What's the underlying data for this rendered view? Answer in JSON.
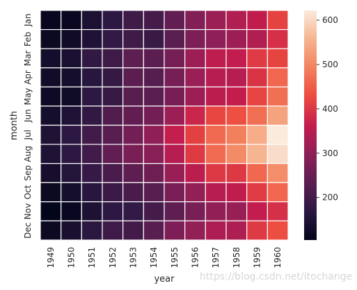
{
  "chart_data": {
    "type": "heatmap",
    "xlabel": "year",
    "ylabel": "month",
    "x": [
      "1949",
      "1950",
      "1951",
      "1952",
      "1953",
      "1954",
      "1955",
      "1956",
      "1957",
      "1958",
      "1959",
      "1960"
    ],
    "y": [
      "Jan",
      "Feb",
      "Mar",
      "Apr",
      "May",
      "Jun",
      "Jul",
      "Aug",
      "Sep",
      "Oct",
      "Nov",
      "Dec"
    ],
    "values": [
      [
        112,
        115,
        145,
        171,
        196,
        204,
        242,
        284,
        315,
        340,
        360,
        417
      ],
      [
        118,
        126,
        150,
        180,
        196,
        188,
        233,
        277,
        301,
        318,
        342,
        391
      ],
      [
        132,
        141,
        178,
        193,
        236,
        235,
        267,
        317,
        356,
        362,
        406,
        419
      ],
      [
        129,
        135,
        163,
        181,
        235,
        227,
        269,
        313,
        348,
        348,
        396,
        461
      ],
      [
        121,
        125,
        172,
        183,
        229,
        234,
        270,
        318,
        355,
        363,
        420,
        472
      ],
      [
        135,
        149,
        178,
        218,
        243,
        264,
        315,
        374,
        422,
        435,
        472,
        535
      ],
      [
        148,
        170,
        199,
        230,
        264,
        302,
        364,
        413,
        465,
        491,
        548,
        622
      ],
      [
        148,
        170,
        199,
        242,
        272,
        293,
        347,
        405,
        467,
        505,
        559,
        606
      ],
      [
        136,
        158,
        184,
        209,
        237,
        259,
        312,
        355,
        404,
        404,
        463,
        508
      ],
      [
        119,
        133,
        162,
        191,
        211,
        229,
        274,
        306,
        347,
        359,
        407,
        461
      ],
      [
        104,
        114,
        146,
        172,
        180,
        203,
        237,
        271,
        305,
        310,
        362,
        390
      ],
      [
        118,
        140,
        166,
        194,
        201,
        229,
        278,
        306,
        336,
        337,
        405,
        432
      ]
    ],
    "colorbar": {
      "ticks": [
        200,
        300,
        400,
        500,
        600
      ],
      "range": [
        104,
        622
      ]
    },
    "colormap": [
      "#03051a",
      "#2b1842",
      "#5b1e51",
      "#8d1f58",
      "#c31d4e",
      "#ec4a3f",
      "#f3815e",
      "#f6b48f",
      "#faebdd"
    ],
    "grid_line_color": "#ffffff"
  },
  "watermark": "https://blog.csdn.net/itochange"
}
